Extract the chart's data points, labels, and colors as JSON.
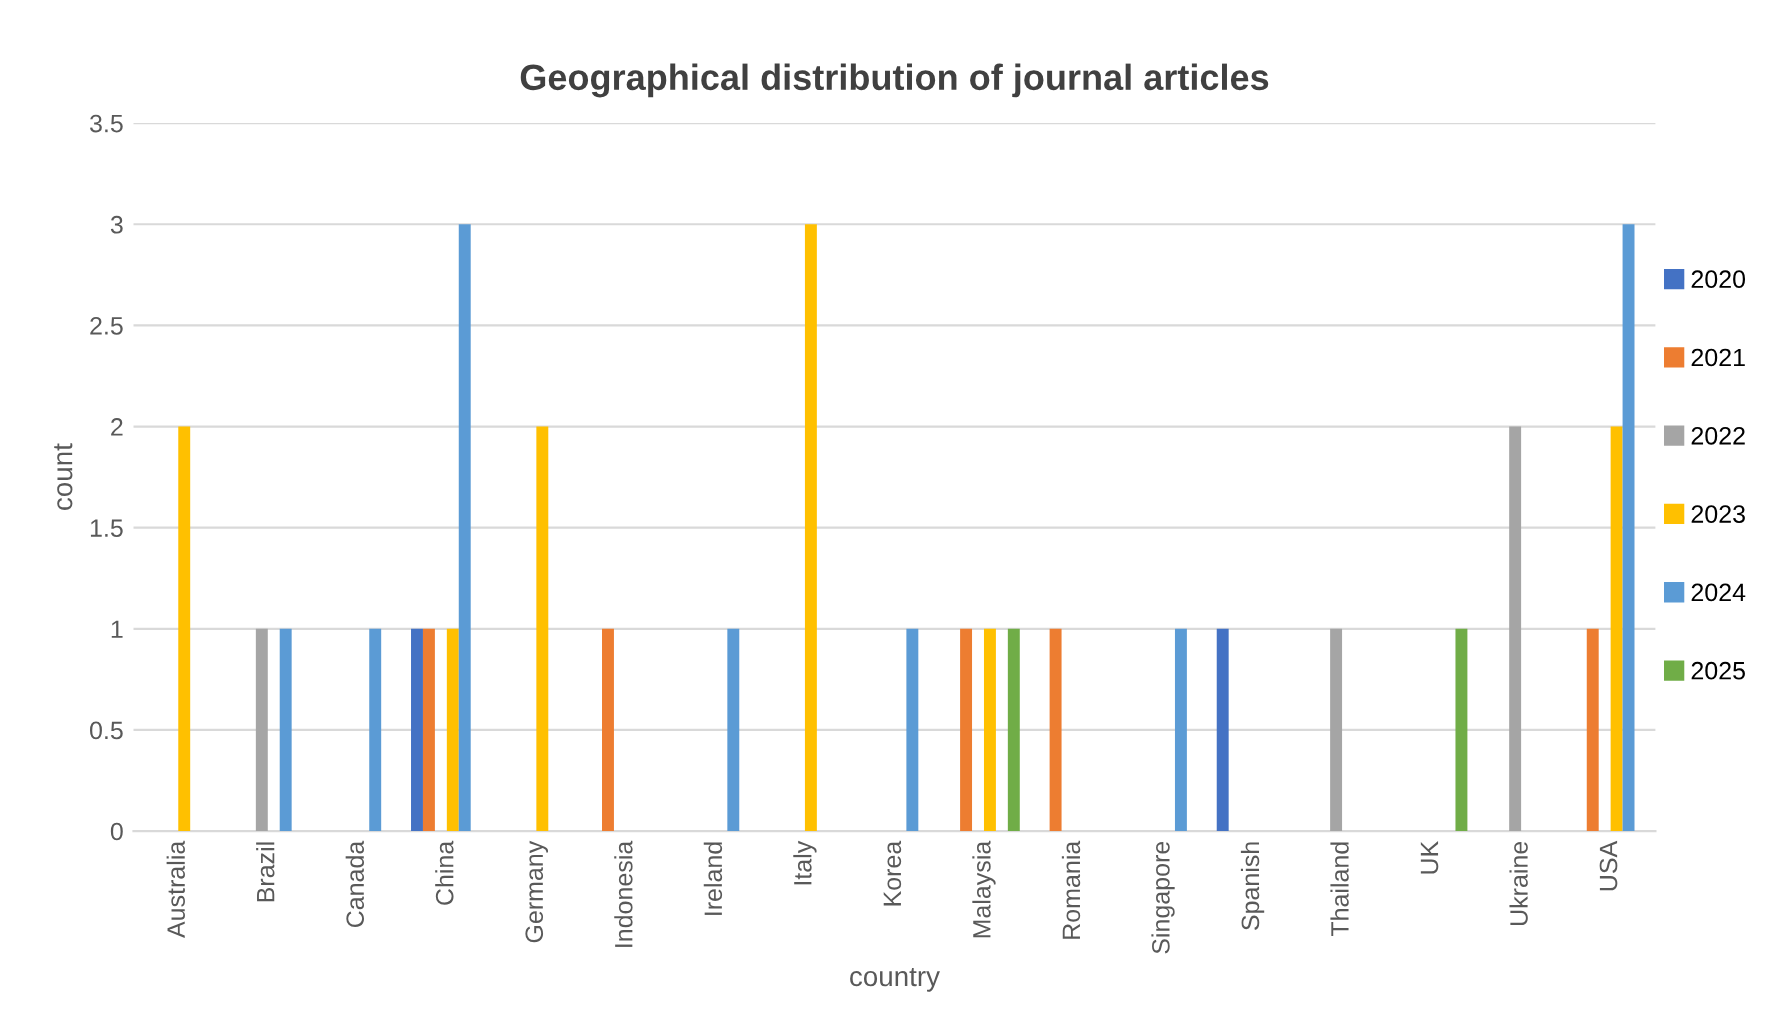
{
  "chart_data": {
    "type": "bar",
    "title": "Geographical distribution of journal articles",
    "xlabel": "country",
    "ylabel": "count",
    "categories": [
      "Australia",
      "Brazil",
      "Canada",
      "China",
      "Germany",
      "Indonesia",
      "Ireland",
      "Italy",
      "Korea",
      "Malaysia",
      "Romania",
      "Singapore",
      "Spanish",
      "Thailand",
      "UK",
      "Ukraine",
      "USA"
    ],
    "series": [
      {
        "name": "2020",
        "color": "#4472c4",
        "values": [
          null,
          null,
          null,
          1,
          null,
          null,
          null,
          null,
          null,
          null,
          null,
          null,
          1,
          null,
          null,
          null,
          null
        ]
      },
      {
        "name": "2021",
        "color": "#ed7d31",
        "values": [
          null,
          null,
          null,
          1,
          null,
          1,
          null,
          null,
          null,
          1,
          1,
          null,
          null,
          null,
          null,
          null,
          1
        ]
      },
      {
        "name": "2022",
        "color": "#a5a5a5",
        "values": [
          null,
          1,
          null,
          null,
          null,
          null,
          null,
          null,
          null,
          null,
          null,
          null,
          null,
          1,
          null,
          2,
          null
        ]
      },
      {
        "name": "2023",
        "color": "#ffc000",
        "values": [
          2,
          null,
          null,
          1,
          2,
          null,
          null,
          3,
          null,
          1,
          null,
          null,
          null,
          null,
          null,
          null,
          2
        ]
      },
      {
        "name": "2024",
        "color": "#5b9bd5",
        "values": [
          null,
          1,
          1,
          3,
          null,
          null,
          1,
          null,
          1,
          null,
          null,
          1,
          null,
          null,
          null,
          null,
          3
        ]
      },
      {
        "name": "2025",
        "color": "#70ad47",
        "values": [
          null,
          null,
          null,
          null,
          null,
          null,
          null,
          null,
          null,
          1,
          null,
          null,
          null,
          null,
          1,
          null,
          null
        ]
      }
    ],
    "ylim": [
      0,
      3.5
    ],
    "yticks": [
      0,
      0.5,
      1,
      1.5,
      2,
      2.5,
      3,
      3.5
    ],
    "grid": "y",
    "legend": "right"
  }
}
